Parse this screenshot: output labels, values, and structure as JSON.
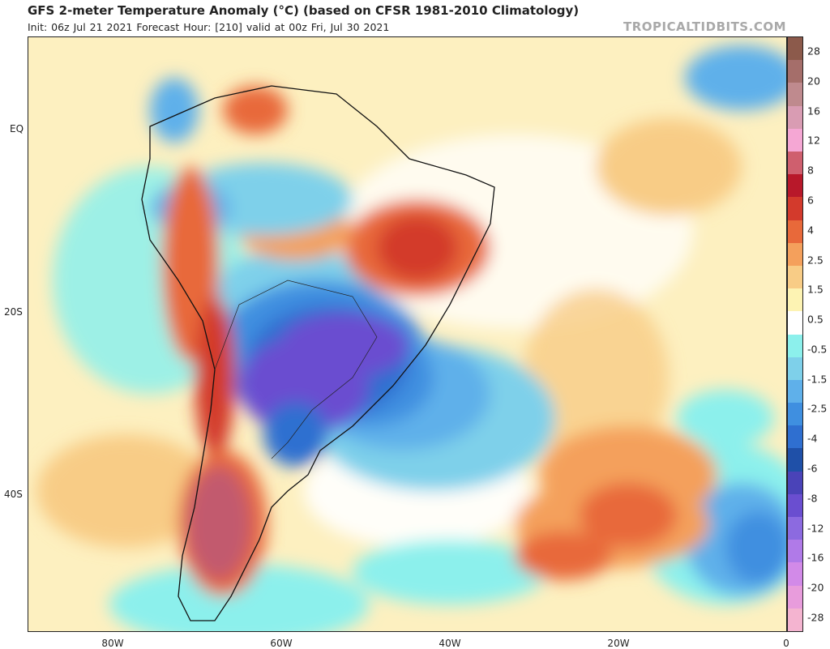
{
  "header": {
    "title": "GFS 2-meter Temperature Anomaly (°C) (based on CFSR 1981-2010 Climatology)",
    "subtitle": "Init: 06z Jul 21 2021   Forecast Hour: [210]   valid at 00z Fri, Jul 30 2021",
    "watermark": "TROPICALTIDBITS.COM"
  },
  "map": {
    "lat_labels": [
      "EQ",
      "20S",
      "40S"
    ],
    "lon_labels": [
      "80W",
      "60W",
      "40W",
      "20W",
      "0"
    ]
  },
  "colorbar": {
    "labels": [
      "28",
      "20",
      "16",
      "12",
      "8",
      "6",
      "4",
      "2.5",
      "1.5",
      "0.5",
      "-0.5",
      "-1.5",
      "-2.5",
      "-4",
      "-6",
      "-8",
      "-12",
      "-16",
      "-20",
      "-28"
    ],
    "colors": [
      "#8c5a4b",
      "#a56e6a",
      "#bf8a8e",
      "#d99cb3",
      "#f5a7d4",
      "#cf5f6e",
      "#b8182a",
      "#d33a2c",
      "#e8693a",
      "#f4a05c",
      "#f8cc86",
      "#fdf3b3",
      "#ffffff",
      "#8cf0ec",
      "#7ed0ea",
      "#5fb0ea",
      "#3f8fe0",
      "#2f6fd0",
      "#1f50a8",
      "#4a43b8",
      "#6a4ed0",
      "#8c6ae0",
      "#b07ae8",
      "#d28ae8",
      "#e89cdc",
      "#f4b4d0"
    ]
  }
}
